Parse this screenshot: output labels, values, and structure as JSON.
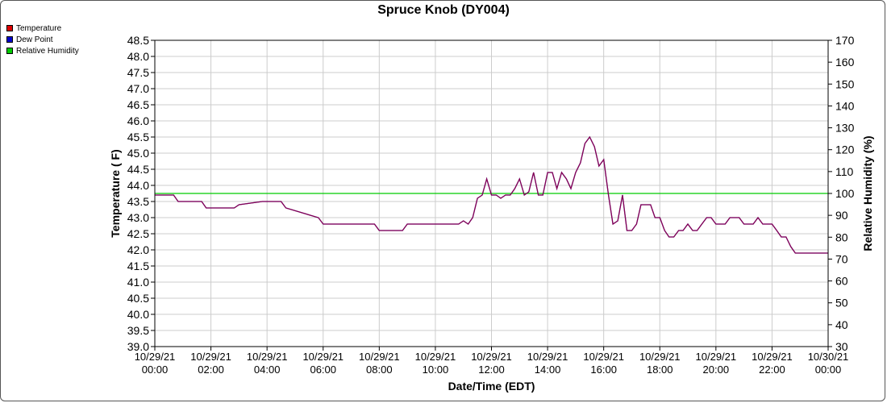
{
  "chart_data": {
    "type": "line",
    "title": "Spruce Knob (DY004)",
    "xlabel": "Date/Time (EDT)",
    "ylabel": "Temperature ( F)",
    "y2label": "Relative Humidity (%)",
    "ylim": [
      39.0,
      48.5
    ],
    "y2lim": [
      30,
      170
    ],
    "xlim_hours": [
      0,
      24
    ],
    "grid": true,
    "legend_placement": "top-left",
    "yticks": [
      "39.0",
      "39.5",
      "40.0",
      "40.5",
      "41.0",
      "41.5",
      "42.0",
      "42.5",
      "43.0",
      "43.5",
      "44.0",
      "44.5",
      "45.0",
      "45.5",
      "46.0",
      "46.5",
      "47.0",
      "47.5",
      "48.0",
      "48.5"
    ],
    "y2ticks": [
      "30",
      "40",
      "50",
      "60",
      "70",
      "80",
      "90",
      "100",
      "110",
      "120",
      "130",
      "140",
      "150",
      "160",
      "170"
    ],
    "xticks": [
      {
        "date": "10/29/21",
        "time": "00:00"
      },
      {
        "date": "10/29/21",
        "time": "02:00"
      },
      {
        "date": "10/29/21",
        "time": "04:00"
      },
      {
        "date": "10/29/21",
        "time": "06:00"
      },
      {
        "date": "10/29/21",
        "time": "08:00"
      },
      {
        "date": "10/29/21",
        "time": "10:00"
      },
      {
        "date": "10/29/21",
        "time": "12:00"
      },
      {
        "date": "10/29/21",
        "time": "14:00"
      },
      {
        "date": "10/29/21",
        "time": "16:00"
      },
      {
        "date": "10/29/21",
        "time": "18:00"
      },
      {
        "date": "10/29/21",
        "time": "20:00"
      },
      {
        "date": "10/29/21",
        "time": "22:00"
      },
      {
        "date": "10/30/21",
        "time": "00:00"
      }
    ],
    "series": [
      {
        "name": "Temperature",
        "color": "#dd0000",
        "axis": "left",
        "x_hours": [
          0,
          0.67,
          0.83,
          1.67,
          1.83,
          2.83,
          3.0,
          3.83,
          4.0,
          4.5,
          4.67,
          5.83,
          6.0,
          7.83,
          8.0,
          8.83,
          9.0,
          10.83,
          11.0,
          11.17,
          11.33,
          11.5,
          11.67,
          11.83,
          12.0,
          12.17,
          12.33,
          12.5,
          12.67,
          12.83,
          13.0,
          13.17,
          13.33,
          13.5,
          13.67,
          13.83,
          14.0,
          14.17,
          14.33,
          14.5,
          14.67,
          14.83,
          15.0,
          15.17,
          15.33,
          15.5,
          15.67,
          15.83,
          16.0,
          16.17,
          16.33,
          16.5,
          16.67,
          16.83,
          17.0,
          17.17,
          17.33,
          17.5,
          17.67,
          17.83,
          18.0,
          18.17,
          18.33,
          18.5,
          18.67,
          18.83,
          19.0,
          19.17,
          19.33,
          19.5,
          19.67,
          19.83,
          20.0,
          20.17,
          20.33,
          20.5,
          20.67,
          20.83,
          21.0,
          21.17,
          21.33,
          21.5,
          21.67,
          21.83,
          22.0,
          22.17,
          22.33,
          22.5,
          22.67,
          22.83,
          23.0,
          23.17,
          23.33,
          23.5,
          23.67,
          23.83,
          24.0
        ],
        "values": [
          43.7,
          43.7,
          43.5,
          43.5,
          43.3,
          43.3,
          43.4,
          43.5,
          43.5,
          43.5,
          43.3,
          43.0,
          42.8,
          42.8,
          42.6,
          42.6,
          42.8,
          42.8,
          42.9,
          42.8,
          43.0,
          43.6,
          43.7,
          44.2,
          43.7,
          43.7,
          43.6,
          43.7,
          43.7,
          43.9,
          44.2,
          43.7,
          43.8,
          44.4,
          43.7,
          43.7,
          44.4,
          44.4,
          43.9,
          44.4,
          44.2,
          43.9,
          44.4,
          44.7,
          45.3,
          45.5,
          45.2,
          44.6,
          44.8,
          43.7,
          42.8,
          42.9,
          43.7,
          42.6,
          42.6,
          42.8,
          43.4,
          43.4,
          43.4,
          43.0,
          43.0,
          42.6,
          42.4,
          42.4,
          42.6,
          42.6,
          42.8,
          42.6,
          42.6,
          42.8,
          43.0,
          43.0,
          42.8,
          42.8,
          42.8,
          43.0,
          43.0,
          43.0,
          42.8,
          42.8,
          42.8,
          43.0,
          42.8,
          42.8,
          42.8,
          42.6,
          42.4,
          42.4,
          42.1,
          41.9,
          41.9,
          41.9,
          41.9,
          41.9,
          41.9,
          41.9,
          41.9
        ]
      },
      {
        "name": "Dew Point",
        "color": "#0000cc",
        "axis": "left",
        "x_hours": [
          0,
          0.67,
          0.83,
          1.67,
          1.83,
          2.83,
          3.0,
          3.83,
          4.0,
          4.5,
          4.67,
          5.83,
          6.0,
          7.83,
          8.0,
          8.83,
          9.0,
          10.83,
          11.0,
          11.17,
          11.33,
          11.5,
          11.67,
          11.83,
          12.0,
          12.17,
          12.33,
          12.5,
          12.67,
          12.83,
          13.0,
          13.17,
          13.33,
          13.5,
          13.67,
          13.83,
          14.0,
          14.17,
          14.33,
          14.5,
          14.67,
          14.83,
          15.0,
          15.17,
          15.33,
          15.5,
          15.67,
          15.83,
          16.0,
          16.17,
          16.33,
          16.5,
          16.67,
          16.83,
          17.0,
          17.17,
          17.33,
          17.5,
          17.67,
          17.83,
          18.0,
          18.17,
          18.33,
          18.5,
          18.67,
          18.83,
          19.0,
          19.17,
          19.33,
          19.5,
          19.67,
          19.83,
          20.0,
          20.17,
          20.33,
          20.5,
          20.67,
          20.83,
          21.0,
          21.17,
          21.33,
          21.5,
          21.67,
          21.83,
          22.0,
          22.17,
          22.33,
          22.5,
          22.67,
          22.83,
          23.0,
          23.17,
          23.33,
          23.5,
          23.67,
          23.83,
          24.0
        ],
        "values": [
          43.7,
          43.7,
          43.5,
          43.5,
          43.3,
          43.3,
          43.4,
          43.5,
          43.5,
          43.5,
          43.3,
          43.0,
          42.8,
          42.8,
          42.6,
          42.6,
          42.8,
          42.8,
          42.9,
          42.8,
          43.0,
          43.6,
          43.7,
          44.2,
          43.7,
          43.7,
          43.6,
          43.7,
          43.7,
          43.9,
          44.2,
          43.7,
          43.8,
          44.4,
          43.7,
          43.7,
          44.4,
          44.4,
          43.9,
          44.4,
          44.2,
          43.9,
          44.4,
          44.7,
          45.3,
          45.5,
          45.2,
          44.6,
          44.8,
          43.7,
          42.8,
          42.9,
          43.7,
          42.6,
          42.6,
          42.8,
          43.4,
          43.4,
          43.4,
          43.0,
          43.0,
          42.6,
          42.4,
          42.4,
          42.6,
          42.6,
          42.8,
          42.6,
          42.6,
          42.8,
          43.0,
          43.0,
          42.8,
          42.8,
          42.8,
          43.0,
          43.0,
          43.0,
          42.8,
          42.8,
          42.8,
          43.0,
          42.8,
          42.8,
          42.8,
          42.6,
          42.4,
          42.4,
          42.1,
          41.9,
          41.9,
          41.9,
          41.9,
          41.9,
          41.9,
          41.9,
          41.9
        ]
      },
      {
        "name": "Relative Humidity",
        "color": "#00cc00",
        "axis": "right",
        "x_hours": [
          0,
          24
        ],
        "values": [
          100,
          100
        ]
      }
    ]
  }
}
